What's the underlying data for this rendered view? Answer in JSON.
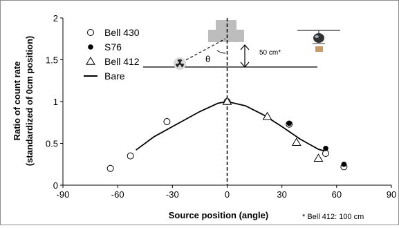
{
  "chart_data": {
    "type": "scatter",
    "xlabel": "Source position (angle)",
    "ylabel_lines": [
      "Ratio of count rate",
      "(standardized of 0cm position)"
    ],
    "xlim": [
      -90,
      90
    ],
    "ylim": [
      0,
      2
    ],
    "x_ticks": [
      -90,
      -60,
      -30,
      0,
      30,
      60,
      90
    ],
    "y_ticks": [
      0,
      0.5,
      1,
      1.5,
      2
    ],
    "x_tick_labels": [
      "-90",
      "-60",
      "-30",
      "0",
      "30",
      "60",
      "90"
    ],
    "y_tick_labels": [
      "0",
      "0.5",
      "1",
      "1.5",
      "2"
    ],
    "grid": false,
    "legend_position": "top-left",
    "series": [
      {
        "name": "Bell 430",
        "marker": "open-circle",
        "points": [
          [
            -64,
            0.2
          ],
          [
            -53,
            0.35
          ],
          [
            -33,
            0.76
          ],
          [
            0,
            1.0
          ],
          [
            34,
            0.73
          ],
          [
            54,
            0.38
          ],
          [
            64,
            0.22
          ]
        ]
      },
      {
        "name": "S76",
        "marker": "filled-circle",
        "points": [
          [
            0,
            1.0
          ],
          [
            34,
            0.74
          ],
          [
            54,
            0.44
          ],
          [
            64,
            0.25
          ]
        ]
      },
      {
        "name": "Bell 412",
        "marker": "open-triangle",
        "points": [
          [
            0,
            1.0
          ],
          [
            22,
            0.82
          ],
          [
            38,
            0.51
          ],
          [
            50,
            0.32
          ]
        ]
      },
      {
        "name": "Bare",
        "marker": "line",
        "points": [
          [
            -50,
            0.42
          ],
          [
            -40,
            0.58
          ],
          [
            -25,
            0.76
          ],
          [
            -15,
            0.88
          ],
          [
            -5,
            0.98
          ],
          [
            0,
            1.0
          ],
          [
            10,
            0.95
          ],
          [
            20,
            0.84
          ],
          [
            30,
            0.7
          ],
          [
            40,
            0.55
          ],
          [
            50,
            0.43
          ],
          [
            55,
            0.4
          ]
        ]
      }
    ],
    "diagram": {
      "height_label": "50 cm*",
      "angle_label": "θ"
    },
    "footnote": "* Bell 412: 100 cm"
  }
}
